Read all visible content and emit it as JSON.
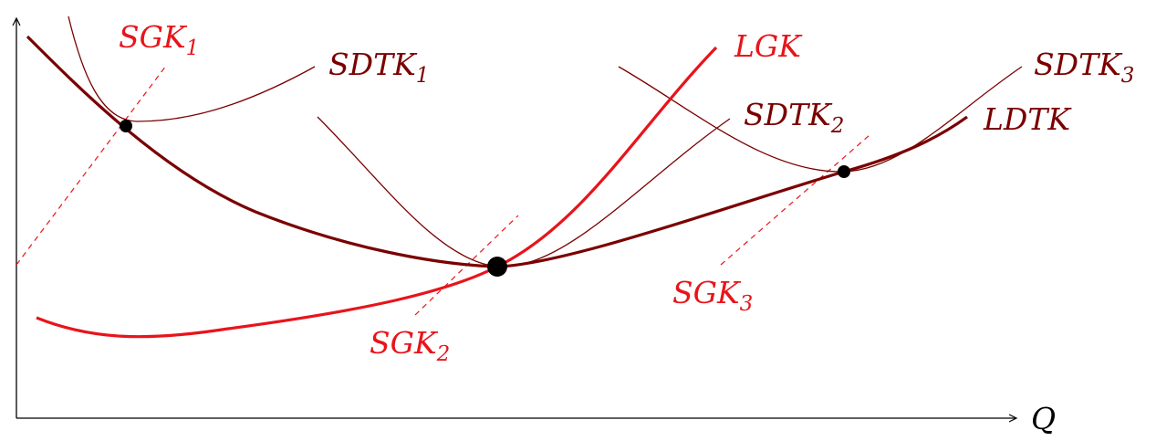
{
  "axis": {
    "x_label": "Q"
  },
  "labels": [
    {
      "text": "SGK",
      "sub": "1"
    },
    {
      "text": "SDTK",
      "sub": "1"
    },
    {
      "text": "LGK"
    },
    {
      "text": "SDTK",
      "sub": "2"
    },
    {
      "text": "SDTK",
      "sub": "3"
    },
    {
      "text": "LDTK"
    },
    {
      "text": "SGK",
      "sub": "2"
    },
    {
      "text": "SGK",
      "sub": "3"
    }
  ]
}
